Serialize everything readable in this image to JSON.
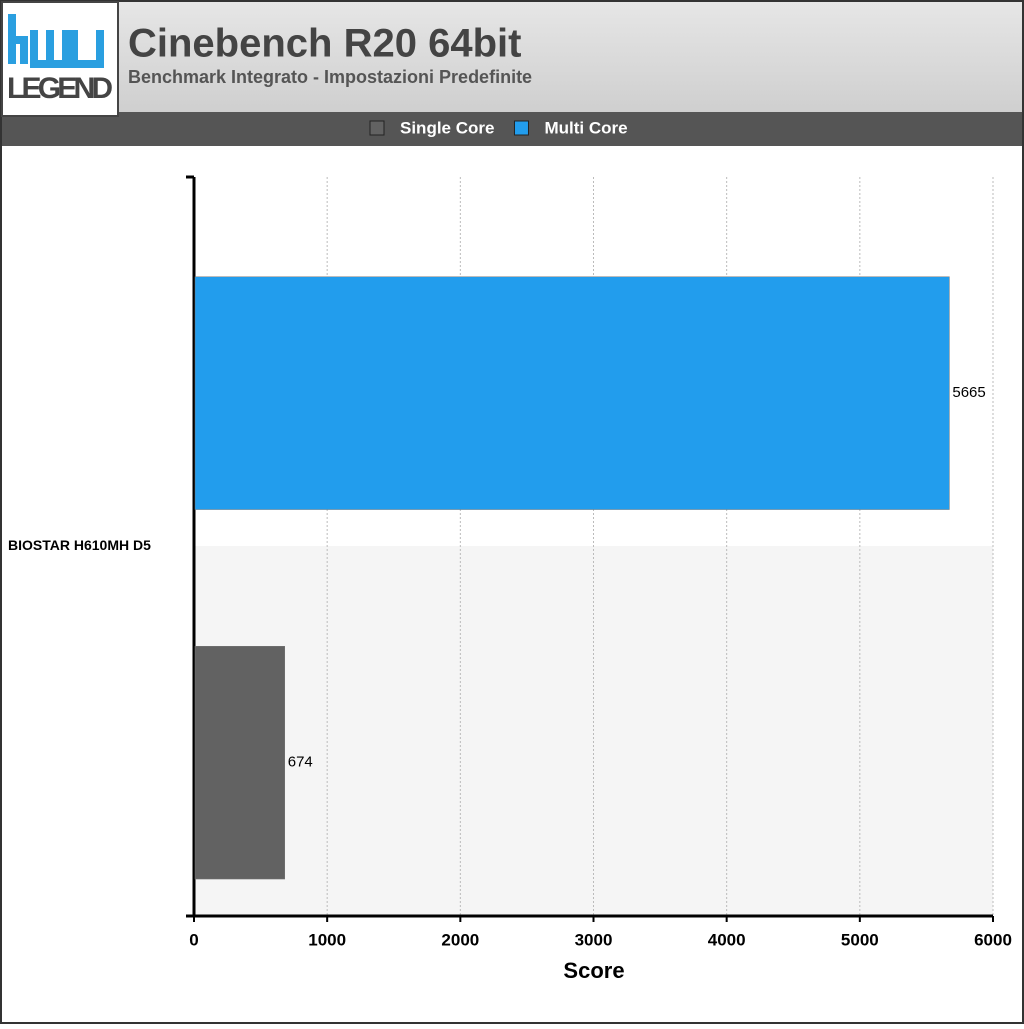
{
  "chart_data": {
    "type": "hbar",
    "title": "Cinebench R20 64bit",
    "subtitle": "Benchmark Integrato - Impostazioni Predefinite",
    "logo_text": "LEGEND",
    "categories": [
      "BIOSTAR H610MH D5"
    ],
    "series": [
      {
        "name": "Single Core",
        "color": "#626262",
        "values": [
          674
        ]
      },
      {
        "name": "Multi Core",
        "color": "#229ded",
        "values": [
          5665
        ]
      }
    ],
    "xlim": [
      0,
      6000
    ],
    "xticks": [
      0,
      1000,
      2000,
      3000,
      4000,
      5000,
      6000
    ],
    "xlabel": "Score",
    "grid": true
  }
}
